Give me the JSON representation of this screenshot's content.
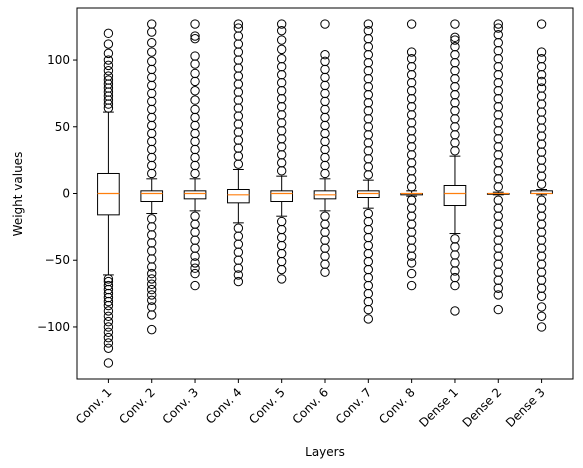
{
  "chart_data": {
    "type": "box",
    "xlabel": "Layers",
    "ylabel": "Weight values",
    "ylim": [
      -139,
      139
    ],
    "yticks": [
      -100,
      -50,
      0,
      50,
      100
    ],
    "ytick_labels": [
      "−100",
      "−50",
      "0",
      "50",
      "100"
    ],
    "grid": false,
    "legend": "none",
    "colors": {
      "box": "#000000",
      "median": "#ff7f0e",
      "outlier": "#000000"
    },
    "categories": [
      "Conv. 1",
      "Conv. 2",
      "Conv. 3",
      "Conv. 4",
      "Conv. 5",
      "Conv. 6",
      "Conv. 7",
      "Conv. 8",
      "Dense 1",
      "Dense 2",
      "Dense 3"
    ],
    "boxes": [
      {
        "label": "Conv. 1",
        "q1": -16,
        "median": 0,
        "q3": 15,
        "whisker_low": -61,
        "whisker_high": 61,
        "fliers_low": [
          -64,
          -66,
          -69,
          -72,
          -75,
          -78,
          -81,
          -84,
          -88,
          -92,
          -96,
          -100,
          -104,
          -108,
          -112,
          -116,
          -127
        ],
        "fliers_high": [
          64,
          67,
          70,
          73,
          76,
          79,
          82,
          85,
          88,
          92,
          96,
          100,
          105,
          112,
          120
        ]
      },
      {
        "label": "Conv. 2",
        "q1": -6,
        "median": 0,
        "q3": 2,
        "whisker_low": -15,
        "whisker_high": 11,
        "fliers_low": [
          -19,
          -25,
          -31,
          -37,
          -43,
          -49,
          -55,
          -60,
          -64,
          -68,
          -72,
          -76,
          -80,
          -85,
          -91,
          -102
        ],
        "fliers_high": [
          15,
          21,
          27,
          33,
          39,
          45,
          51,
          57,
          63,
          69,
          75,
          81,
          87,
          93,
          99,
          106,
          113,
          121,
          127
        ]
      },
      {
        "label": "Conv. 3",
        "q1": -4,
        "median": 0,
        "q3": 2,
        "whisker_low": -13,
        "whisker_high": 11,
        "fliers_low": [
          -17,
          -23,
          -29,
          -35,
          -41,
          -47,
          -52,
          -56,
          -60,
          -69
        ],
        "fliers_high": [
          15,
          21,
          27,
          33,
          39,
          45,
          51,
          57,
          63,
          70,
          77,
          84,
          90,
          97,
          103,
          116,
          118,
          127
        ]
      },
      {
        "label": "Conv. 4",
        "q1": -7,
        "median": -1,
        "q3": 3,
        "whisker_low": -22,
        "whisker_high": 18,
        "fliers_low": [
          -26,
          -32,
          -38,
          -44,
          -50,
          -56,
          -61,
          -66
        ],
        "fliers_high": [
          22,
          28,
          34,
          40,
          46,
          52,
          58,
          64,
          70,
          76,
          82,
          88,
          94,
          100,
          106,
          112,
          118,
          124,
          127
        ]
      },
      {
        "label": "Conv. 5",
        "q1": -6,
        "median": 0,
        "q3": 2,
        "whisker_low": -17,
        "whisker_high": 13,
        "fliers_low": [
          -21,
          -27,
          -33,
          -39,
          -45,
          -51,
          -57,
          -64
        ],
        "fliers_high": [
          17,
          23,
          29,
          35,
          41,
          47,
          53,
          59,
          65,
          71,
          77,
          83,
          89,
          95,
          101,
          108,
          115,
          122,
          127
        ]
      },
      {
        "label": "Conv. 6",
        "q1": -4,
        "median": -1,
        "q3": 2,
        "whisker_low": -13,
        "whisker_high": 11,
        "fliers_low": [
          -17,
          -23,
          -29,
          -35,
          -41,
          -47,
          -53,
          -59
        ],
        "fliers_high": [
          15,
          21,
          27,
          33,
          39,
          45,
          51,
          57,
          63,
          69,
          75,
          81,
          87,
          93,
          99,
          104,
          127
        ]
      },
      {
        "label": "Conv. 7",
        "q1": -3,
        "median": 0,
        "q3": 2,
        "whisker_low": -11,
        "whisker_high": 10,
        "fliers_low": [
          -15,
          -21,
          -27,
          -33,
          -39,
          -45,
          -51,
          -57,
          -63,
          -69,
          -75,
          -81,
          -87,
          -94
        ],
        "fliers_high": [
          14,
          20,
          26,
          32,
          38,
          44,
          50,
          56,
          62,
          68,
          74,
          80,
          86,
          92,
          98,
          104,
          110,
          116,
          122,
          127
        ]
      },
      {
        "label": "Conv. 8",
        "q1": -1,
        "median": 0,
        "q3": 0,
        "whisker_low": -2,
        "whisker_high": 2,
        "fliers_low": [
          -5,
          -11,
          -17,
          -23,
          -29,
          -35,
          -41,
          -47,
          -52,
          -60,
          -69
        ],
        "fliers_high": [
          5,
          11,
          17,
          23,
          29,
          35,
          41,
          47,
          53,
          59,
          65,
          71,
          77,
          83,
          89,
          95,
          101,
          106,
          127
        ]
      },
      {
        "label": "Dense 1",
        "q1": -9,
        "median": 0,
        "q3": 6,
        "whisker_low": -30,
        "whisker_high": 28,
        "fliers_low": [
          -34,
          -40,
          -46,
          -52,
          -58,
          -63,
          -69,
          -88
        ],
        "fliers_high": [
          32,
          38,
          44,
          50,
          56,
          62,
          68,
          74,
          80,
          86,
          92,
          98,
          104,
          110,
          115,
          117,
          127
        ]
      },
      {
        "label": "Dense 2",
        "q1": 0,
        "median": 0,
        "q3": 0,
        "whisker_low": -1,
        "whisker_high": 1,
        "fliers_low": [
          -5,
          -11,
          -17,
          -23,
          -29,
          -35,
          -41,
          -47,
          -53,
          -59,
          -65,
          -71,
          -76,
          -87
        ],
        "fliers_high": [
          5,
          11,
          17,
          23,
          29,
          35,
          41,
          47,
          53,
          59,
          65,
          71,
          77,
          83,
          89,
          95,
          101,
          107,
          113,
          119,
          124,
          127
        ]
      },
      {
        "label": "Dense 3",
        "q1": 0,
        "median": 0,
        "q3": 2,
        "whisker_low": -1,
        "whisker_high": 3,
        "fliers_low": [
          -5,
          -11,
          -17,
          -23,
          -29,
          -35,
          -41,
          -47,
          -53,
          -59,
          -65,
          -71,
          -77,
          -85,
          -92,
          -100
        ],
        "fliers_high": [
          7,
          13,
          19,
          25,
          31,
          37,
          43,
          49,
          55,
          61,
          67,
          73,
          79,
          84,
          89,
          95,
          101,
          106,
          127
        ]
      }
    ]
  }
}
